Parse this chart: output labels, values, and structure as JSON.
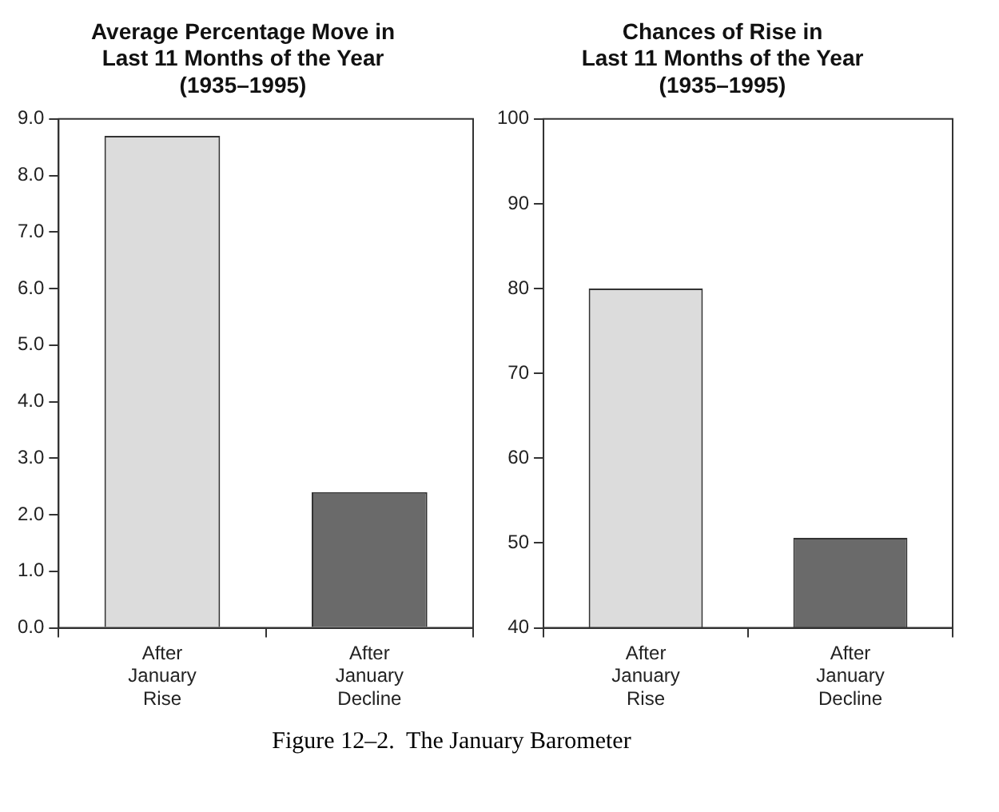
{
  "chart_data": [
    {
      "type": "bar",
      "title": "Average Percentage Move in\nLast 11 Months of the Year\n(1935–1995)",
      "categories": [
        "After January Rise",
        "After January Decline"
      ],
      "values": [
        8.7,
        2.4
      ],
      "colors": [
        "#dcdcdc",
        "#6a6a6a"
      ],
      "ylim": [
        0,
        9
      ],
      "yticks": [
        {
          "value": 0,
          "label": "0.0"
        },
        {
          "value": 1,
          "label": "1.0"
        },
        {
          "value": 2,
          "label": "2.0"
        },
        {
          "value": 3,
          "label": "3.0"
        },
        {
          "value": 4,
          "label": "4.0"
        },
        {
          "value": 5,
          "label": "5.0"
        },
        {
          "value": 6,
          "label": "6.0"
        },
        {
          "value": 7,
          "label": "7.0"
        },
        {
          "value": 8,
          "label": "8.0"
        },
        {
          "value": 9,
          "label": "9.0"
        }
      ],
      "grid": false,
      "legend": false
    },
    {
      "type": "bar",
      "title": "Chances of Rise in\nLast 11 Months of the Year\n(1935–1995)",
      "categories": [
        "After January Rise",
        "After January Decline"
      ],
      "values": [
        80,
        50.6
      ],
      "colors": [
        "#dcdcdc",
        "#6a6a6a"
      ],
      "ylim": [
        40,
        100
      ],
      "yticks": [
        40,
        50,
        60,
        70,
        80,
        90,
        100
      ],
      "grid": false,
      "legend": false,
      "annotations": [
        "Figure 12–2.  The January Barometer"
      ]
    }
  ]
}
